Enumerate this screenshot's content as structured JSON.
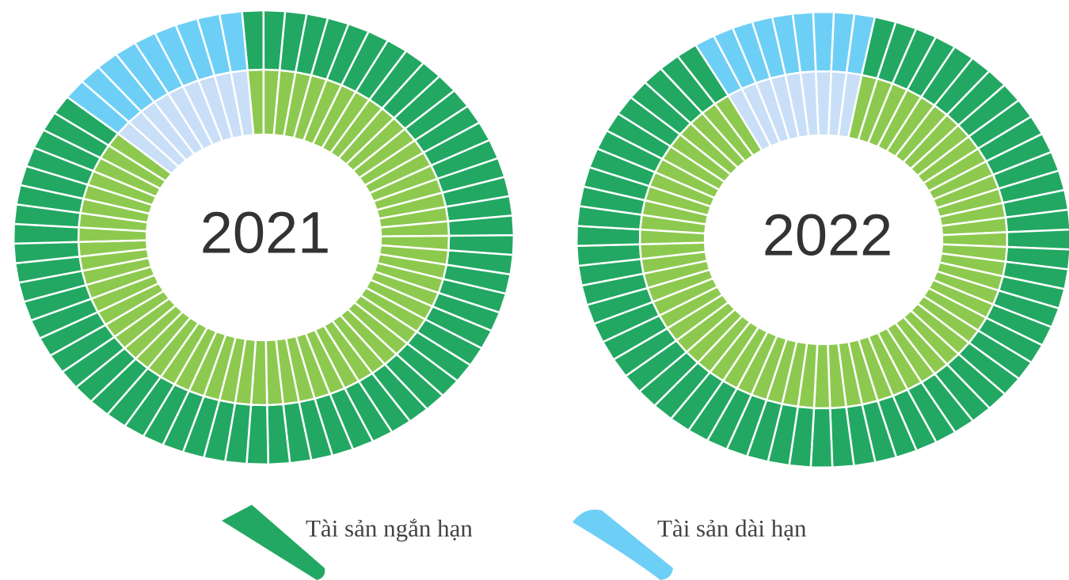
{
  "legend": [
    {
      "name": "Tài sản ngắn hạn",
      "color": "#22a862",
      "inner_color": "#8dc94f"
    },
    {
      "name": "Tài sản dài hạn",
      "color": "#6ecff6",
      "inner_color": "#c9dff7"
    }
  ],
  "chart_data": [
    {
      "type": "pie",
      "title": "2021",
      "values": [
        87,
        13
      ]
    },
    {
      "type": "pie",
      "title": "2022",
      "values": [
        88,
        12
      ]
    }
  ]
}
